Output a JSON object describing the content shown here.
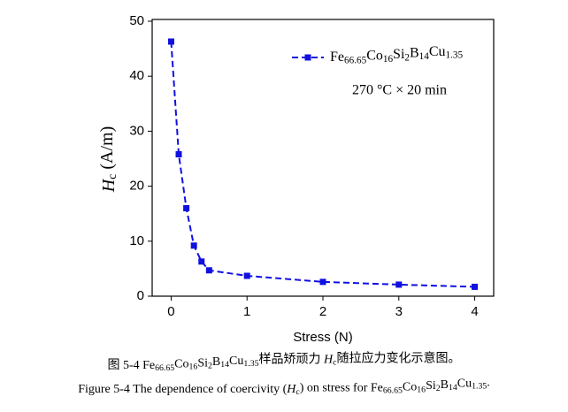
{
  "chart_data": {
    "type": "line",
    "x_label": "Stress (N)",
    "y_label": "Hc (A/m)",
    "annotation": "270 °C × 20 min",
    "x": [
      0,
      0.1,
      0.2,
      0.3,
      0.4,
      0.5,
      1,
      2,
      3,
      4
    ],
    "series": [
      {
        "name": "Fe66.65Co16Si2B14Cu1.35",
        "color": "#1010e0",
        "values": [
          46.3,
          25.8,
          16,
          9.2,
          6.3,
          4.7,
          3.7,
          2.6,
          2.1,
          1.7
        ]
      }
    ],
    "xlim": [
      -0.25,
      4.25
    ],
    "xticks": [
      0,
      1,
      2,
      3,
      4
    ],
    "ylim": [
      0,
      50
    ],
    "yticks": [
      0,
      10,
      20,
      30,
      40,
      50
    ],
    "legend": "upper right"
  },
  "captions": [
    "图 5-4 Fe66.65Co16Si2B14Cu1.35样品矫顽力 Hc随拉应力变化示意图。",
    "Figure 5-4 The dependence of coercivity (Hc) on stress for Fe66.65Co16Si2B14Cu1.35."
  ]
}
